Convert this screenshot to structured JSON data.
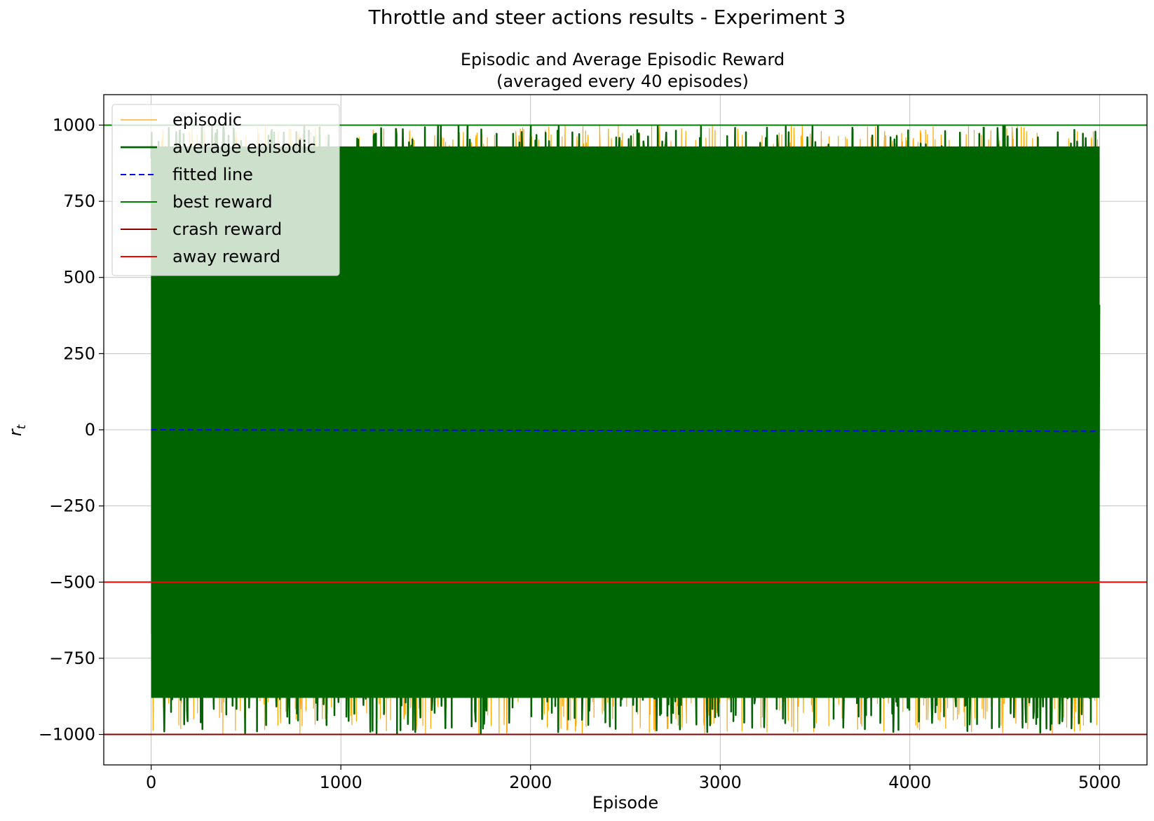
{
  "figure": {
    "suptitle": "Throttle and steer actions results - Experiment 3"
  },
  "chart_data": {
    "type": "line",
    "title_line1": "Episodic and Average Episodic Reward",
    "title_line2": "(averaged every 40 episodes)",
    "xlabel": "Episode",
    "ylabel": "r",
    "ylabel_subscript": "t",
    "xlim": [
      -250,
      5250
    ],
    "ylim": [
      -1100,
      1100
    ],
    "xticks": [
      0,
      1000,
      2000,
      3000,
      4000,
      5000
    ],
    "xtick_labels": [
      "0",
      "1000",
      "2000",
      "3000",
      "4000",
      "5000"
    ],
    "yticks": [
      1000,
      750,
      500,
      250,
      0,
      -250,
      -500,
      -750,
      -1000
    ],
    "ytick_labels": [
      "1000",
      "750",
      "500",
      "250",
      "0",
      "−250",
      "−500",
      "−750",
      "−1000"
    ],
    "grid": true,
    "legend_position": "top-left",
    "series": [
      {
        "name": "episodic",
        "color": "#ffa500",
        "style": "solid",
        "x_range": [
          0,
          5000
        ],
        "episodes": 5000,
        "value_range": [
          -1000,
          1000
        ],
        "dense_band": [
          -900,
          950
        ]
      },
      {
        "name": "average episodic",
        "color": "#006400",
        "style": "solid",
        "x_range": [
          0,
          5000
        ],
        "episodes": 5000,
        "value_range": [
          -1000,
          1000
        ],
        "dense_band": [
          -880,
          930
        ]
      },
      {
        "name": "fitted line",
        "color": "#0000ff",
        "style": "dashed",
        "x": [
          0,
          5000
        ],
        "y": [
          0,
          -5
        ]
      },
      {
        "name": "best reward",
        "color": "#008000",
        "style": "solid",
        "y": 1000
      },
      {
        "name": "crash reward",
        "color": "#8b0000",
        "style": "solid",
        "y": -1000
      },
      {
        "name": "away reward",
        "color": "#ff0000",
        "style": "solid",
        "y": -500
      }
    ]
  }
}
